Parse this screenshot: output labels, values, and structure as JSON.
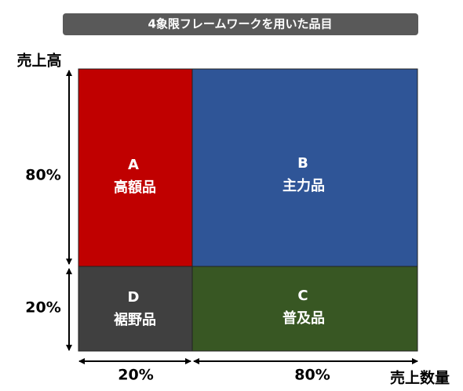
{
  "title": "4象限フレームワークを用いた品目",
  "y_axis": {
    "label": "売上高",
    "segments": [
      "80%",
      "20%"
    ]
  },
  "x_axis": {
    "label": "売上数量",
    "segments": [
      "20%",
      "80%"
    ]
  },
  "quadrants": [
    {
      "letter": "A",
      "name": "高額品"
    },
    {
      "letter": "B",
      "name": "主力品"
    },
    {
      "letter": "C",
      "name": "普及品"
    },
    {
      "letter": "D",
      "name": "裾野品"
    }
  ]
}
